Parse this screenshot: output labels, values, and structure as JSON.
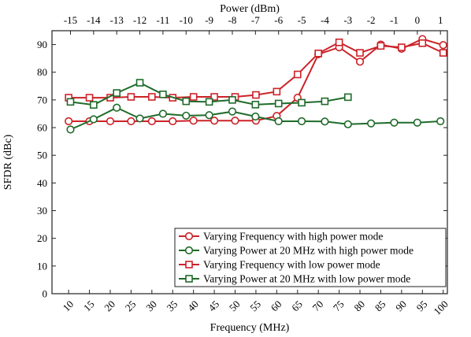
{
  "chart_data": {
    "type": "line",
    "title": "",
    "xlabel": "Frequency (MHz)",
    "ylabel": "SFDR (dBc)",
    "x2label": "Power (dBm)",
    "xlim": [
      6,
      101
    ],
    "ylim": [
      0,
      95
    ],
    "x_ticks": [
      10,
      15,
      20,
      25,
      30,
      35,
      40,
      45,
      50,
      55,
      60,
      65,
      70,
      75,
      80,
      85,
      90,
      95,
      100
    ],
    "y_ticks": [
      0,
      10,
      20,
      30,
      40,
      50,
      60,
      70,
      80,
      90
    ],
    "x2lim": [
      -15.8,
      1.3
    ],
    "x2_ticks": [
      -15,
      -14,
      -13,
      -12,
      -11,
      -10,
      -9,
      -8,
      -7,
      -6,
      -5,
      -4,
      -3,
      -2,
      -1,
      0,
      1
    ],
    "grid": false,
    "legend_position": "bottom-right",
    "series": [
      {
        "name": "Varying Frequency with high power mode",
        "color": "#cc2229",
        "marker": "circle",
        "axis": "frequency",
        "x": [
          10,
          15,
          20,
          25,
          30,
          35,
          40,
          45,
          50,
          55,
          60,
          65,
          70,
          75,
          80,
          85,
          90,
          95,
          100
        ],
        "y": [
          62.3,
          62.3,
          62.3,
          62.3,
          62.3,
          62.3,
          62.5,
          62.5,
          62.5,
          62.5,
          64.2,
          70.8,
          86.5,
          89.0,
          83.8,
          90.0,
          88.5,
          92.0,
          89.8
        ]
      },
      {
        "name": "Varying Power at 20 MHz with high power mode",
        "color": "#1f6b2a",
        "marker": "circle",
        "axis": "power",
        "x": [
          -15,
          -14,
          -13,
          -12,
          -11,
          -10,
          -9,
          -8,
          -7,
          -6,
          -5,
          -4,
          -3,
          -2,
          -1,
          0,
          1
        ],
        "y": [
          59.3,
          63.0,
          67.2,
          63.3,
          65.0,
          64.3,
          64.5,
          65.8,
          64.0,
          62.3,
          62.3,
          62.2,
          61.2,
          61.5,
          61.8,
          61.8,
          62.3
        ]
      },
      {
        "name": "Varying Frequency with low power mode",
        "color": "#cc2229",
        "marker": "square",
        "axis": "frequency",
        "x": [
          10,
          15,
          20,
          25,
          30,
          35,
          40,
          45,
          50,
          55,
          60,
          65,
          70,
          75,
          80,
          85,
          90,
          95,
          100
        ],
        "y": [
          70.8,
          70.8,
          70.8,
          71.1,
          71.1,
          70.8,
          71.1,
          71.1,
          71.1,
          71.8,
          73.0,
          79.2,
          86.8,
          90.8,
          87.0,
          89.5,
          89.0,
          90.5,
          87.0
        ]
      },
      {
        "name": "Varying Power at 20 MHz with low power mode",
        "color": "#1f6b2a",
        "marker": "square",
        "axis": "power",
        "x": [
          -15,
          -14,
          -13,
          -12,
          -11,
          -10,
          -9,
          -8,
          -7,
          -6,
          -5,
          -4,
          -3
        ],
        "y": [
          69.3,
          68.2,
          72.5,
          76.2,
          72.0,
          69.5,
          69.3,
          70.0,
          68.3,
          68.7,
          69.0,
          69.5,
          71.0
        ]
      }
    ]
  }
}
